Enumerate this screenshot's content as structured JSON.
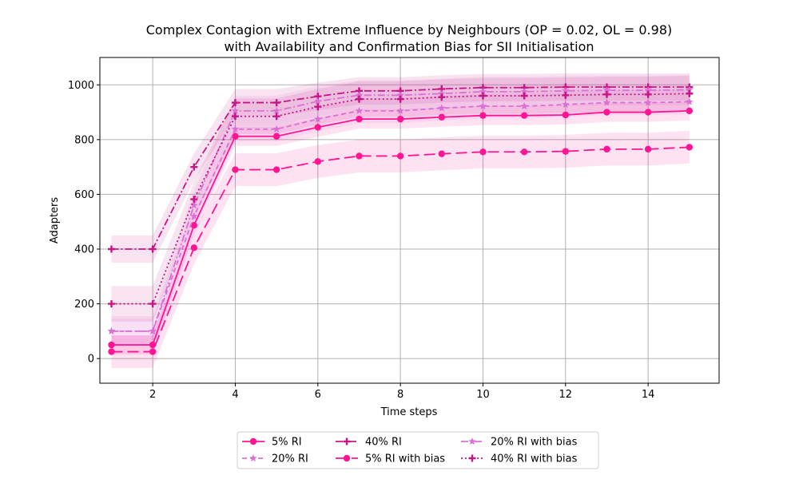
{
  "chart_data": {
    "type": "line",
    "title_line1": "Complex Contagion with Extreme Influence by Neighbours (OP = 0.02, OL = 0.98)",
    "title_line2": "with Availability and Confirmation Bias for SII Initialisation",
    "xlabel": "Time steps",
    "ylabel": "Adapters",
    "xlim": [
      0.72,
      15.72
    ],
    "ylim": [
      -90,
      1100
    ],
    "xticks": [
      2,
      4,
      6,
      8,
      10,
      12,
      14
    ],
    "yticks": [
      0,
      200,
      400,
      600,
      800,
      1000
    ],
    "grid": true,
    "legend_position": "bottom-center",
    "x": [
      1,
      2,
      3,
      4,
      5,
      6,
      7,
      8,
      9,
      10,
      11,
      12,
      13,
      14,
      15
    ],
    "series": [
      {
        "name": "5% RI",
        "color": "#ff1493",
        "dash": "solid",
        "marker": "circle",
        "values": [
          50,
          50,
          487,
          812,
          812,
          845,
          875,
          875,
          882,
          888,
          888,
          890,
          900,
          900,
          905
        ],
        "band": 35
      },
      {
        "name": "20% RI",
        "color": "#da70d6",
        "dash": "dashed",
        "marker": "star",
        "values": [
          100,
          100,
          520,
          838,
          838,
          875,
          905,
          905,
          915,
          922,
          922,
          928,
          935,
          935,
          938
        ],
        "band": 45
      },
      {
        "name": "40% RI",
        "color": "#c71585",
        "dash": "dashdot",
        "marker": "plus",
        "values": [
          400,
          400,
          700,
          935,
          935,
          958,
          978,
          978,
          985,
          990,
          990,
          992,
          992,
          992,
          992
        ],
        "band": 50
      },
      {
        "name": "5% RI with bias",
        "color": "#ff1493",
        "dash": "longdash",
        "marker": "circle",
        "values": [
          25,
          25,
          405,
          690,
          690,
          720,
          740,
          740,
          748,
          755,
          755,
          757,
          765,
          765,
          772
        ],
        "band": 60
      },
      {
        "name": "20% RI with bias",
        "color": "#da70d6",
        "dash": "dashdot",
        "marker": "star",
        "values": [
          100,
          100,
          560,
          905,
          905,
          940,
          962,
          962,
          968,
          975,
          975,
          978,
          980,
          980,
          982
        ],
        "band": 55
      },
      {
        "name": "40% RI with bias",
        "color": "#c71585",
        "dash": "dotted",
        "marker": "plus",
        "values": [
          200,
          200,
          582,
          885,
          885,
          920,
          948,
          948,
          955,
          960,
          960,
          962,
          965,
          965,
          968
        ],
        "band": 65
      }
    ]
  }
}
